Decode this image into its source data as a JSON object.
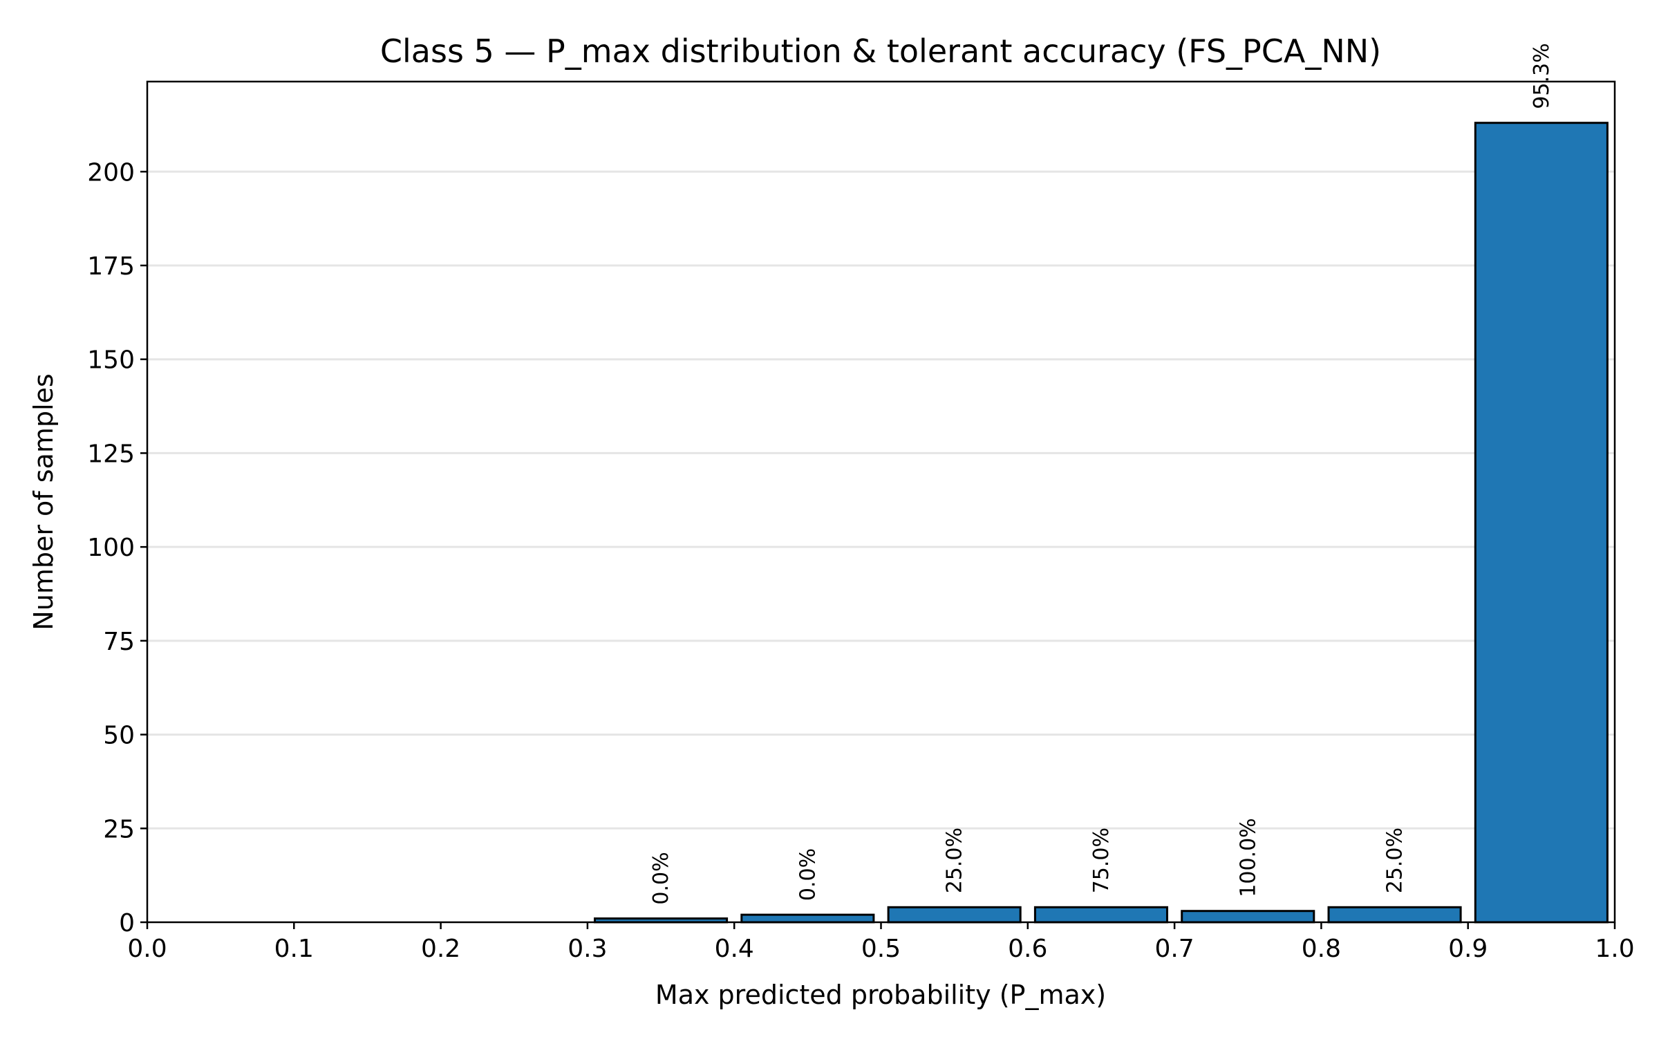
{
  "chart_data": {
    "type": "bar",
    "title": "Class 5 — P_max distribution & tolerant accuracy (FS_PCA_NN)",
    "xlabel": "Max predicted probability (P_max)",
    "ylabel": "Number of samples",
    "xlim": [
      0.0,
      1.0
    ],
    "ylim": [
      0,
      224
    ],
    "xticks": [
      "0.0",
      "0.1",
      "0.2",
      "0.3",
      "0.4",
      "0.5",
      "0.6",
      "0.7",
      "0.8",
      "0.9",
      "1.0"
    ],
    "yticks": [
      "0",
      "25",
      "50",
      "75",
      "100",
      "125",
      "150",
      "175",
      "200"
    ],
    "bin_edges": [
      0.0,
      0.1,
      0.2,
      0.3,
      0.4,
      0.5,
      0.6,
      0.7,
      0.8,
      0.9,
      1.0
    ],
    "values": [
      0,
      0,
      0,
      1,
      2,
      4,
      4,
      3,
      4,
      213
    ],
    "annotations": [
      "",
      "",
      "",
      "0.0%",
      "0.0%",
      "25.0%",
      "75.0%",
      "100.0%",
      "25.0%",
      "95.3%"
    ],
    "grid": "y",
    "colors": {
      "bar": "#1f77b4",
      "edge": "#000000",
      "grid": "#e5e5e5"
    }
  }
}
